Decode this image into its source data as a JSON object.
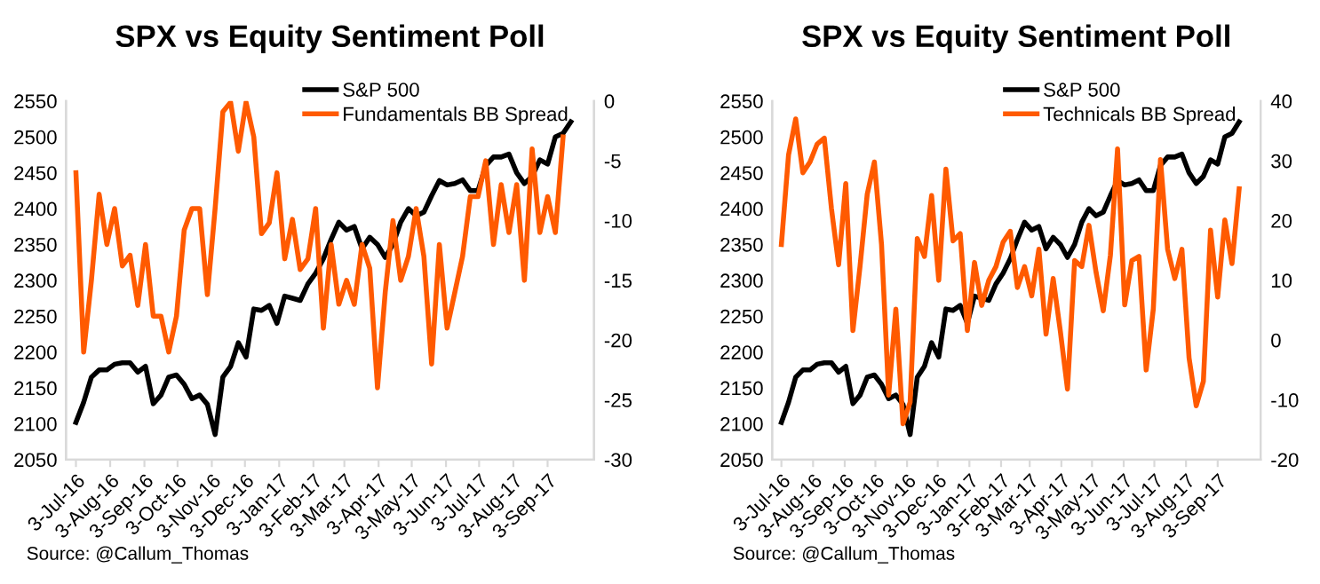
{
  "chart_data": [
    {
      "type": "line",
      "title": "SPX vs Equity Sentiment Poll",
      "legend": "top right",
      "grid": false,
      "line_style": "solid",
      "marker": "none",
      "annotations": [
        "Source: @Callum_Thomas"
      ],
      "x": [
        "2016-07-03",
        "2016-07-10",
        "2016-07-17",
        "2016-07-24",
        "2016-07-31",
        "2016-08-07",
        "2016-08-14",
        "2016-08-21",
        "2016-08-28",
        "2016-09-04",
        "2016-09-11",
        "2016-09-18",
        "2016-09-25",
        "2016-10-02",
        "2016-10-09",
        "2016-10-16",
        "2016-10-23",
        "2016-10-30",
        "2016-11-06",
        "2016-11-13",
        "2016-11-20",
        "2016-11-27",
        "2016-12-04",
        "2016-12-11",
        "2016-12-18",
        "2016-12-25",
        "2017-01-01",
        "2017-01-08",
        "2017-01-15",
        "2017-01-22",
        "2017-01-29",
        "2017-02-05",
        "2017-02-12",
        "2017-02-19",
        "2017-02-26",
        "2017-03-05",
        "2017-03-12",
        "2017-03-19",
        "2017-03-26",
        "2017-04-02",
        "2017-04-09",
        "2017-04-16",
        "2017-04-23",
        "2017-04-30",
        "2017-05-07",
        "2017-05-14",
        "2017-05-21",
        "2017-05-28",
        "2017-06-04",
        "2017-06-11",
        "2017-06-18",
        "2017-06-25",
        "2017-07-02",
        "2017-07-09",
        "2017-07-16",
        "2017-07-23",
        "2017-07-30",
        "2017-08-06",
        "2017-08-13",
        "2017-08-20",
        "2017-08-27",
        "2017-09-03",
        "2017-09-10",
        "2017-09-17",
        "2017-09-24"
      ],
      "xlim": [
        "2016-06-24",
        "2017-10-15"
      ],
      "xticks": [
        {
          "value": "2016-07-03",
          "label": "3-Jul-16"
        },
        {
          "value": "2016-08-03",
          "label": "3-Aug-16"
        },
        {
          "value": "2016-09-03",
          "label": "3-Sep-16"
        },
        {
          "value": "2016-10-03",
          "label": "3-Oct-16"
        },
        {
          "value": "2016-11-03",
          "label": "3-Nov-16"
        },
        {
          "value": "2016-12-03",
          "label": "3-Dec-16"
        },
        {
          "value": "2017-01-03",
          "label": "3-Jan-17"
        },
        {
          "value": "2017-02-03",
          "label": "3-Feb-17"
        },
        {
          "value": "2017-03-03",
          "label": "3-Mar-17"
        },
        {
          "value": "2017-04-03",
          "label": "3-Apr-17"
        },
        {
          "value": "2017-05-03",
          "label": "3-May-17"
        },
        {
          "value": "2017-06-03",
          "label": "3-Jun-17"
        },
        {
          "value": "2017-07-03",
          "label": "3-Jul-17"
        },
        {
          "value": "2017-08-03",
          "label": "3-Aug-17"
        },
        {
          "value": "2017-09-03",
          "label": "3-Sep-17"
        }
      ],
      "ylim": [
        2050,
        2550
      ],
      "yticks": [
        2050,
        2100,
        2150,
        2200,
        2250,
        2300,
        2350,
        2400,
        2450,
        2500,
        2550
      ],
      "y2lim": [
        -30,
        0
      ],
      "y2ticks": [
        -30,
        -25,
        -20,
        -15,
        -10,
        -5,
        0
      ],
      "series": [
        {
          "name": "S&P 500",
          "color": "#000000",
          "values": [
            2102,
            2130,
            2165,
            2175,
            2175,
            2183,
            2185,
            2185,
            2172,
            2180,
            2128,
            2140,
            2165,
            2168,
            2155,
            2135,
            2140,
            2127,
            2085,
            2165,
            2180,
            2213,
            2193,
            2260,
            2258,
            2265,
            2240,
            2278,
            2275,
            2272,
            2295,
            2310,
            2330,
            2357,
            2381,
            2370,
            2375,
            2344,
            2360,
            2350,
            2332,
            2350,
            2381,
            2400,
            2390,
            2395,
            2418,
            2439,
            2433,
            2435,
            2440,
            2425,
            2425,
            2460,
            2472,
            2472,
            2476,
            2450,
            2435,
            2445,
            2468,
            2462,
            2500,
            2505,
            2521
          ]
        },
        {
          "name": "Fundamentals BB Spread",
          "color": "#ff5a00",
          "axis": "y2",
          "values": [
            -6,
            -21,
            -15,
            -7.8,
            -12,
            -9,
            -13.8,
            -12.9,
            -17.1,
            -12,
            -18,
            -18,
            -21,
            -18,
            -10.8,
            -9,
            -9,
            -16.2,
            -9,
            -0.9,
            -0.1,
            -4.2,
            -0.1,
            -3,
            -11.1,
            -10.2,
            -6,
            -13.2,
            -9.9,
            -14.1,
            -13.2,
            -9,
            -19,
            -12,
            -17,
            -15,
            -17,
            -12,
            -14,
            -24,
            -16,
            -10,
            -15,
            -13,
            -9,
            -13,
            -22,
            -12,
            -19,
            -16,
            -13,
            -8,
            -8,
            -5,
            -12,
            -7,
            -11,
            -7,
            -15,
            -4,
            -11,
            -8,
            -11,
            -3,
            null
          ]
        }
      ]
    },
    {
      "type": "line",
      "title": "SPX vs Equity Sentiment Poll",
      "legend": "top right",
      "grid": false,
      "line_style": "solid",
      "marker": "none",
      "annotations": [
        "Source: @Callum_Thomas"
      ],
      "x": [
        "2016-07-03",
        "2016-07-10",
        "2016-07-17",
        "2016-07-24",
        "2016-07-31",
        "2016-08-07",
        "2016-08-14",
        "2016-08-21",
        "2016-08-28",
        "2016-09-04",
        "2016-09-11",
        "2016-09-18",
        "2016-09-25",
        "2016-10-02",
        "2016-10-09",
        "2016-10-16",
        "2016-10-23",
        "2016-10-30",
        "2016-11-06",
        "2016-11-13",
        "2016-11-20",
        "2016-11-27",
        "2016-12-04",
        "2016-12-11",
        "2016-12-18",
        "2016-12-25",
        "2017-01-01",
        "2017-01-08",
        "2017-01-15",
        "2017-01-22",
        "2017-01-29",
        "2017-02-05",
        "2017-02-12",
        "2017-02-19",
        "2017-02-26",
        "2017-03-05",
        "2017-03-12",
        "2017-03-19",
        "2017-03-26",
        "2017-04-02",
        "2017-04-09",
        "2017-04-16",
        "2017-04-23",
        "2017-04-30",
        "2017-05-07",
        "2017-05-14",
        "2017-05-21",
        "2017-05-28",
        "2017-06-04",
        "2017-06-11",
        "2017-06-18",
        "2017-06-25",
        "2017-07-02",
        "2017-07-09",
        "2017-07-16",
        "2017-07-23",
        "2017-07-30",
        "2017-08-06",
        "2017-08-13",
        "2017-08-20",
        "2017-08-27",
        "2017-09-03",
        "2017-09-10",
        "2017-09-17",
        "2017-09-24"
      ],
      "xlim": [
        "2016-06-24",
        "2017-10-15"
      ],
      "xticks": [
        {
          "value": "2016-07-03",
          "label": "3-Jul-16"
        },
        {
          "value": "2016-08-03",
          "label": "3-Aug-16"
        },
        {
          "value": "2016-09-03",
          "label": "3-Sep-16"
        },
        {
          "value": "2016-10-03",
          "label": "3-Oct-16"
        },
        {
          "value": "2016-11-03",
          "label": "3-Nov-16"
        },
        {
          "value": "2016-12-03",
          "label": "3-Dec-16"
        },
        {
          "value": "2017-01-03",
          "label": "3-Jan-17"
        },
        {
          "value": "2017-02-03",
          "label": "3-Feb-17"
        },
        {
          "value": "2017-03-03",
          "label": "3-Mar-17"
        },
        {
          "value": "2017-04-03",
          "label": "3-Apr-17"
        },
        {
          "value": "2017-05-03",
          "label": "3-May-17"
        },
        {
          "value": "2017-06-03",
          "label": "3-Jun-17"
        },
        {
          "value": "2017-07-03",
          "label": "3-Jul-17"
        },
        {
          "value": "2017-08-03",
          "label": "3-Aug-17"
        },
        {
          "value": "2017-09-03",
          "label": "3-Sep-17"
        }
      ],
      "ylim": [
        2050,
        2550
      ],
      "yticks": [
        2050,
        2100,
        2150,
        2200,
        2250,
        2300,
        2350,
        2400,
        2450,
        2500,
        2550
      ],
      "y2lim": [
        -20,
        40
      ],
      "y2ticks": [
        -20,
        -10,
        0,
        10,
        20,
        30,
        40
      ],
      "series": [
        {
          "name": "S&P 500",
          "color": "#000000",
          "values": [
            2102,
            2130,
            2165,
            2175,
            2175,
            2183,
            2185,
            2185,
            2172,
            2180,
            2128,
            2140,
            2165,
            2168,
            2155,
            2135,
            2140,
            2127,
            2085,
            2165,
            2180,
            2213,
            2193,
            2260,
            2258,
            2265,
            2240,
            2278,
            2275,
            2272,
            2295,
            2310,
            2330,
            2357,
            2381,
            2370,
            2375,
            2344,
            2360,
            2350,
            2332,
            2350,
            2381,
            2400,
            2390,
            2395,
            2418,
            2439,
            2433,
            2435,
            2440,
            2425,
            2425,
            2460,
            2472,
            2472,
            2476,
            2450,
            2435,
            2445,
            2468,
            2462,
            2500,
            2505,
            2521
          ]
        },
        {
          "name": "Technicals BB Spread",
          "color": "#ff5a00",
          "axis": "y2",
          "values": [
            16,
            31,
            37,
            28,
            29.8,
            32.8,
            33.8,
            22,
            12.6,
            26.2,
            1.6,
            12.4,
            24.4,
            29.8,
            16,
            -9.2,
            5.2,
            -14,
            -10.4,
            17,
            14,
            24.2,
            10,
            28.6,
            16.6,
            17.8,
            1.6,
            13,
            5.8,
            10,
            12.3,
            16.4,
            18.2,
            8.8,
            12.3,
            7.4,
            15.2,
            1,
            10.3,
            1.5,
            -8.2,
            13.3,
            12.3,
            19.2,
            11.3,
            4.9,
            14.2,
            32,
            5.9,
            13.3,
            14,
            -5,
            5.2,
            30.2,
            15.2,
            10.3,
            15.2,
            -3,
            -11,
            -6.9,
            18.4,
            7.2,
            20.1,
            12.8,
            25.3
          ]
        }
      ]
    }
  ]
}
